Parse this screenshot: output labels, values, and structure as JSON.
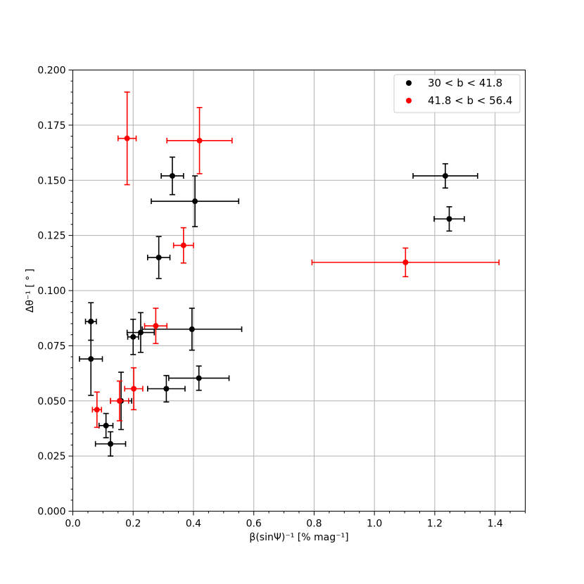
{
  "chart_data": {
    "type": "scatter",
    "xlabel": "β(sinΨ)⁻¹ [% mag⁻¹]",
    "ylabel": "Δθ⁻¹ [ ° ]",
    "xlim": [
      0.0,
      1.5
    ],
    "ylim": [
      0.0,
      0.2
    ],
    "xticks": [
      "0.0",
      "0.2",
      "0.4",
      "0.6",
      "0.8",
      "1.0",
      "1.2",
      "1.4"
    ],
    "yticks": [
      "0.000",
      "0.025",
      "0.050",
      "0.075",
      "0.100",
      "0.125",
      "0.150",
      "0.175",
      "0.200"
    ],
    "grid": true,
    "legend_position": "top-right",
    "series": [
      {
        "name": "30 < b < 41.8",
        "color": "#000000",
        "points": [
          {
            "x": 0.33,
            "y": 0.152,
            "xerr": 0.037,
            "yerr": 0.0085
          },
          {
            "x": 0.405,
            "y": 0.1405,
            "xerr": 0.145,
            "yerr": 0.0115
          },
          {
            "x": 0.285,
            "y": 0.115,
            "xerr": 0.037,
            "yerr": 0.0095
          },
          {
            "x": 0.06,
            "y": 0.086,
            "xerr": 0.018,
            "yerr": 0.0085
          },
          {
            "x": 0.06,
            "y": 0.069,
            "xerr": 0.038,
            "yerr": 0.0165
          },
          {
            "x": 0.2,
            "y": 0.079,
            "xerr": 0.018,
            "yerr": 0.008
          },
          {
            "x": 0.225,
            "y": 0.081,
            "xerr": 0.045,
            "yerr": 0.009
          },
          {
            "x": 0.395,
            "y": 0.0825,
            "xerr": 0.165,
            "yerr": 0.0095
          },
          {
            "x": 0.31,
            "y": 0.0555,
            "xerr": 0.062,
            "yerr": 0.006
          },
          {
            "x": 0.418,
            "y": 0.0603,
            "xerr": 0.1,
            "yerr": 0.0055
          },
          {
            "x": 0.16,
            "y": 0.05,
            "xerr": 0.035,
            "yerr": 0.013
          },
          {
            "x": 0.11,
            "y": 0.0388,
            "xerr": 0.023,
            "yerr": 0.0055
          },
          {
            "x": 0.125,
            "y": 0.0305,
            "xerr": 0.05,
            "yerr": 0.0055
          },
          {
            "x": 1.235,
            "y": 0.152,
            "xerr": 0.107,
            "yerr": 0.0055
          },
          {
            "x": 1.248,
            "y": 0.1325,
            "xerr": 0.05,
            "yerr": 0.0055
          }
        ]
      },
      {
        "name": "41.8 < b < 56.4",
        "color": "#ff0000",
        "points": [
          {
            "x": 0.18,
            "y": 0.169,
            "xerr": 0.03,
            "yerr": 0.021
          },
          {
            "x": 0.42,
            "y": 0.168,
            "xerr": 0.108,
            "yerr": 0.015
          },
          {
            "x": 0.367,
            "y": 0.1205,
            "xerr": 0.033,
            "yerr": 0.008
          },
          {
            "x": 0.275,
            "y": 0.084,
            "xerr": 0.037,
            "yerr": 0.008
          },
          {
            "x": 0.202,
            "y": 0.0555,
            "xerr": 0.03,
            "yerr": 0.0095
          },
          {
            "x": 0.155,
            "y": 0.05,
            "xerr": 0.03,
            "yerr": 0.009
          },
          {
            "x": 0.08,
            "y": 0.046,
            "xerr": 0.015,
            "yerr": 0.008
          },
          {
            "x": 1.103,
            "y": 0.1128,
            "xerr": 0.31,
            "yerr": 0.0065
          }
        ]
      }
    ]
  }
}
